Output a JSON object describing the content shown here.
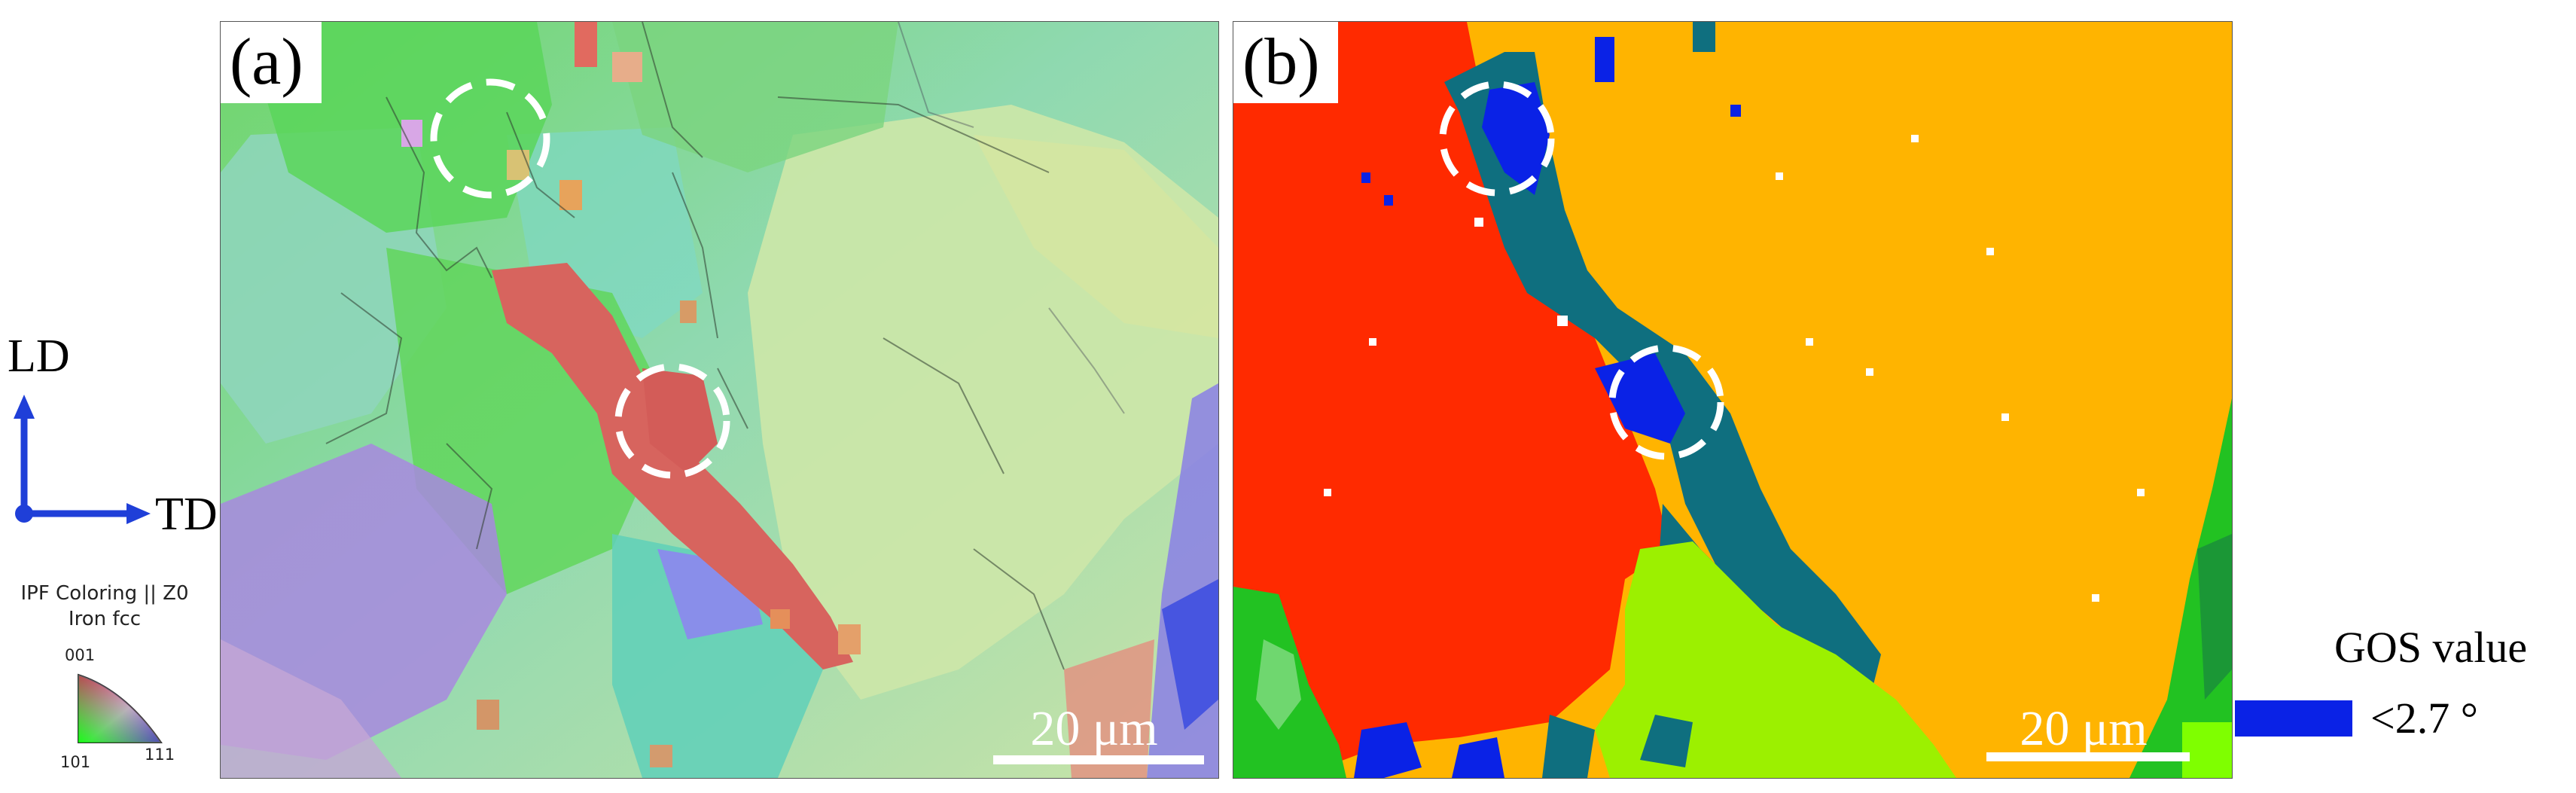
{
  "panels": {
    "a": {
      "label": "(a)",
      "scale_text": "20 μm"
    },
    "b": {
      "label": "(b)",
      "scale_text": "20 μm"
    }
  },
  "axes": {
    "vertical": "LD",
    "horizontal": "TD",
    "arrow_color": "#1f3fd8"
  },
  "ipf_key": {
    "title": "IPF Coloring || Z0",
    "phase": "Iron fcc",
    "corner_001": "001",
    "corner_101": "101",
    "corner_111": "111"
  },
  "gos_legend": {
    "title": "GOS value",
    "label": "<2.7 °",
    "color": "#0a22e6"
  },
  "colors": {
    "ipf_green": "#7fcf8a",
    "ipf_red": "#d9685f",
    "ipf_purple": "#a07be0",
    "gos_red": "#ff2a00",
    "gos_orange": "#ffb400",
    "gos_teal": "#0f6f7f",
    "gos_lime": "#9cf000",
    "gos_green": "#22c222",
    "gos_blue": "#0a22e6"
  }
}
